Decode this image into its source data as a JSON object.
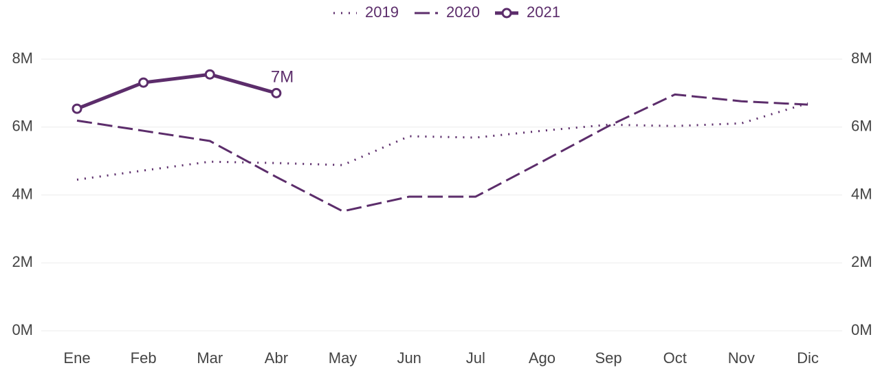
{
  "chart_data": {
    "type": "line",
    "categories": [
      "Ene",
      "Feb",
      "Mar",
      "Abr",
      "May",
      "Jun",
      "Jul",
      "Ago",
      "Sep",
      "Oct",
      "Nov",
      "Dic"
    ],
    "series": [
      {
        "name": "2019",
        "color": "#5c2d6b",
        "dash": "dotted",
        "values": [
          4.45,
          4.72,
          4.98,
          4.94,
          4.88,
          5.73,
          5.69,
          5.89,
          6.07,
          6.03,
          6.11,
          6.7
        ]
      },
      {
        "name": "2020",
        "color": "#5c2d6b",
        "dash": "dashed",
        "values": [
          6.19,
          5.89,
          5.59,
          4.53,
          3.52,
          3.95,
          3.95,
          4.98,
          6.03,
          6.96,
          6.76,
          6.66
        ]
      },
      {
        "name": "2021",
        "color": "#5c2d6b",
        "dash": "solid",
        "marker": "circle",
        "values": [
          6.54,
          7.31,
          7.55,
          7.0,
          null,
          null,
          null,
          null,
          null,
          null,
          null,
          null
        ],
        "value_labels": [
          null,
          null,
          null,
          "7M",
          null,
          null,
          null,
          null,
          null,
          null,
          null,
          null
        ]
      }
    ],
    "ylim": [
      0,
      8
    ],
    "yticks": [
      {
        "value": 0,
        "label": "0M"
      },
      {
        "value": 2,
        "label": "2M"
      },
      {
        "value": 4,
        "label": "4M"
      },
      {
        "value": 6,
        "label": "6M"
      },
      {
        "value": 8,
        "label": "8M"
      }
    ],
    "grid": true,
    "legend": "top",
    "secondary_axis_mirror": true
  }
}
